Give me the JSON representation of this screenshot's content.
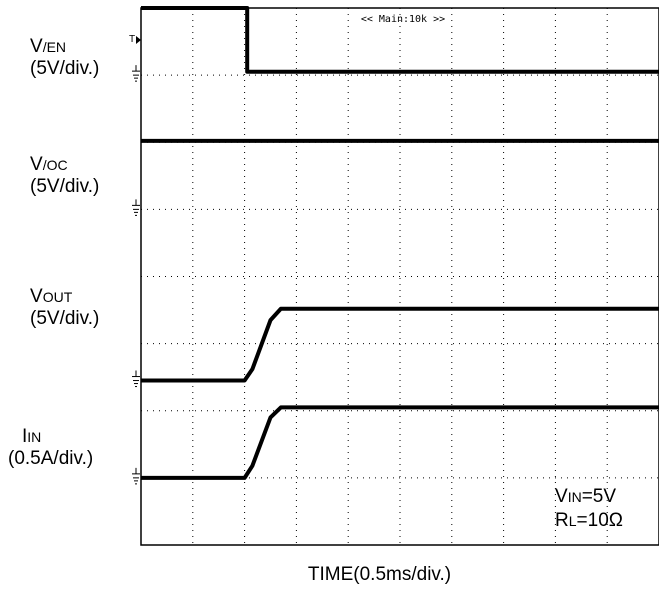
{
  "chart_data": {
    "type": "line",
    "title": "",
    "xlabel": "TIME(0.5ms/div.)",
    "ylabel": "",
    "grid": true,
    "x_divisions": 10,
    "y_divisions": 8,
    "x_unit_per_div_ms": 0.5,
    "trigger_label": "<< Main:10k >>",
    "channels": [
      {
        "name_main": "V",
        "name_sub": "/EN",
        "scale": "(5V/div.)",
        "ground_div": 7.0,
        "points": [
          [
            0.0,
            8.0
          ],
          [
            2.05,
            8.0
          ],
          [
            2.05,
            7.05
          ],
          [
            10.0,
            7.05
          ]
        ]
      },
      {
        "name_main": "V",
        "name_sub": "/OC",
        "scale": "(5V/div.)",
        "ground_div": 5.0,
        "points": [
          [
            0.0,
            6.02
          ],
          [
            10.0,
            6.02
          ]
        ]
      },
      {
        "name_main": "V",
        "name_sub": "OUT",
        "scale": "(5V/div.)",
        "ground_div": 2.45,
        "points": [
          [
            0.0,
            2.45
          ],
          [
            2.0,
            2.45
          ],
          [
            2.15,
            2.62
          ],
          [
            2.5,
            3.35
          ],
          [
            2.7,
            3.52
          ],
          [
            10.0,
            3.52
          ]
        ]
      },
      {
        "name_main": "I",
        "name_sub": "IN",
        "scale": "(0.5A/div.)",
        "ground_div": 1.0,
        "points": [
          [
            0.0,
            1.0
          ],
          [
            2.0,
            1.0
          ],
          [
            2.15,
            1.18
          ],
          [
            2.5,
            1.9
          ],
          [
            2.7,
            2.05
          ],
          [
            10.0,
            2.05
          ]
        ]
      }
    ],
    "conditions": [
      {
        "main": "V",
        "sub": "IN",
        "rest": "=5V"
      },
      {
        "main": "R",
        "sub": "L",
        "rest": "=10Ω"
      }
    ]
  }
}
